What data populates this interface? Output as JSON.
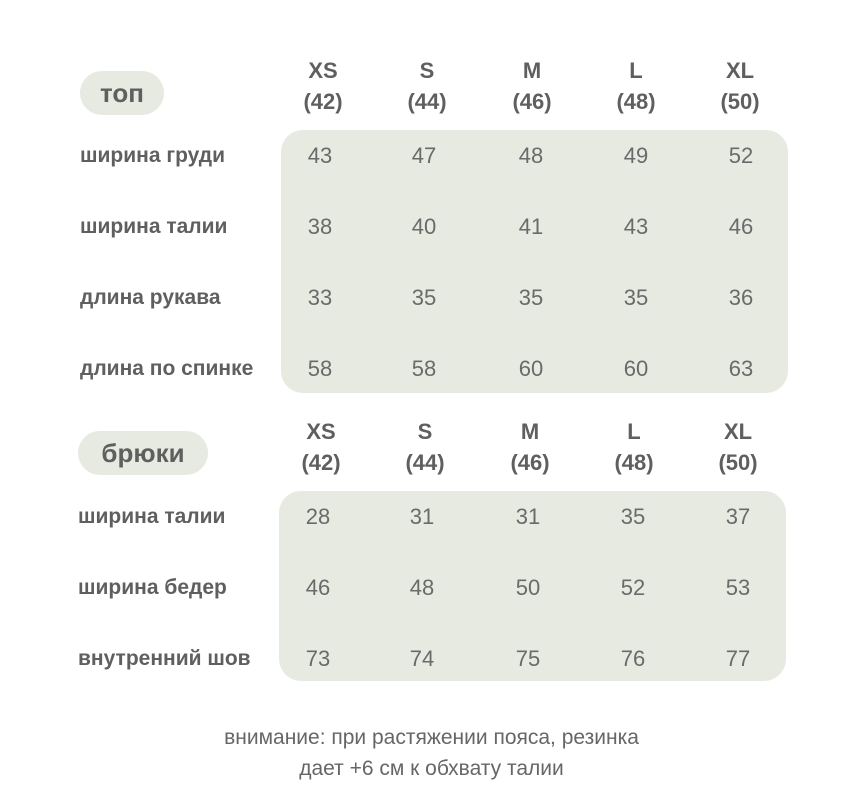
{
  "top": {
    "title": "топ",
    "sizes": [
      {
        "name": "XS",
        "eu": "(42)"
      },
      {
        "name": "S",
        "eu": "(44)"
      },
      {
        "name": "M",
        "eu": "(46)"
      },
      {
        "name": "L",
        "eu": "(48)"
      },
      {
        "name": "XL",
        "eu": "(50)"
      }
    ],
    "rows": [
      {
        "label": "ширина груди",
        "values": [
          "43",
          "47",
          "48",
          "49",
          "52"
        ]
      },
      {
        "label": "ширина талии",
        "values": [
          "38",
          "40",
          "41",
          "43",
          "46"
        ]
      },
      {
        "label": "длина рукава",
        "values": [
          "33",
          "35",
          "35",
          "35",
          "36"
        ]
      },
      {
        "label": "длина по спинке",
        "values": [
          "58",
          "58",
          "60",
          "60",
          "63"
        ]
      }
    ]
  },
  "pants": {
    "title": "брюки",
    "sizes": [
      {
        "name": "XS",
        "eu": "(42)"
      },
      {
        "name": "S",
        "eu": "(44)"
      },
      {
        "name": "M",
        "eu": "(46)"
      },
      {
        "name": "L",
        "eu": "(48)"
      },
      {
        "name": "XL",
        "eu": "(50)"
      }
    ],
    "rows": [
      {
        "label": "ширина талии",
        "values": [
          "28",
          "31",
          "31",
          "35",
          "37"
        ]
      },
      {
        "label": "ширина бедер",
        "values": [
          "46",
          "48",
          "50",
          "52",
          "53"
        ]
      },
      {
        "label": "внутренний шов",
        "values": [
          "73",
          "74",
          "75",
          "76",
          "77"
        ]
      }
    ]
  },
  "note": {
    "line1": "внимание: при растяжении пояса, резинка",
    "line2": "дает +6 см к обхвату талии"
  }
}
